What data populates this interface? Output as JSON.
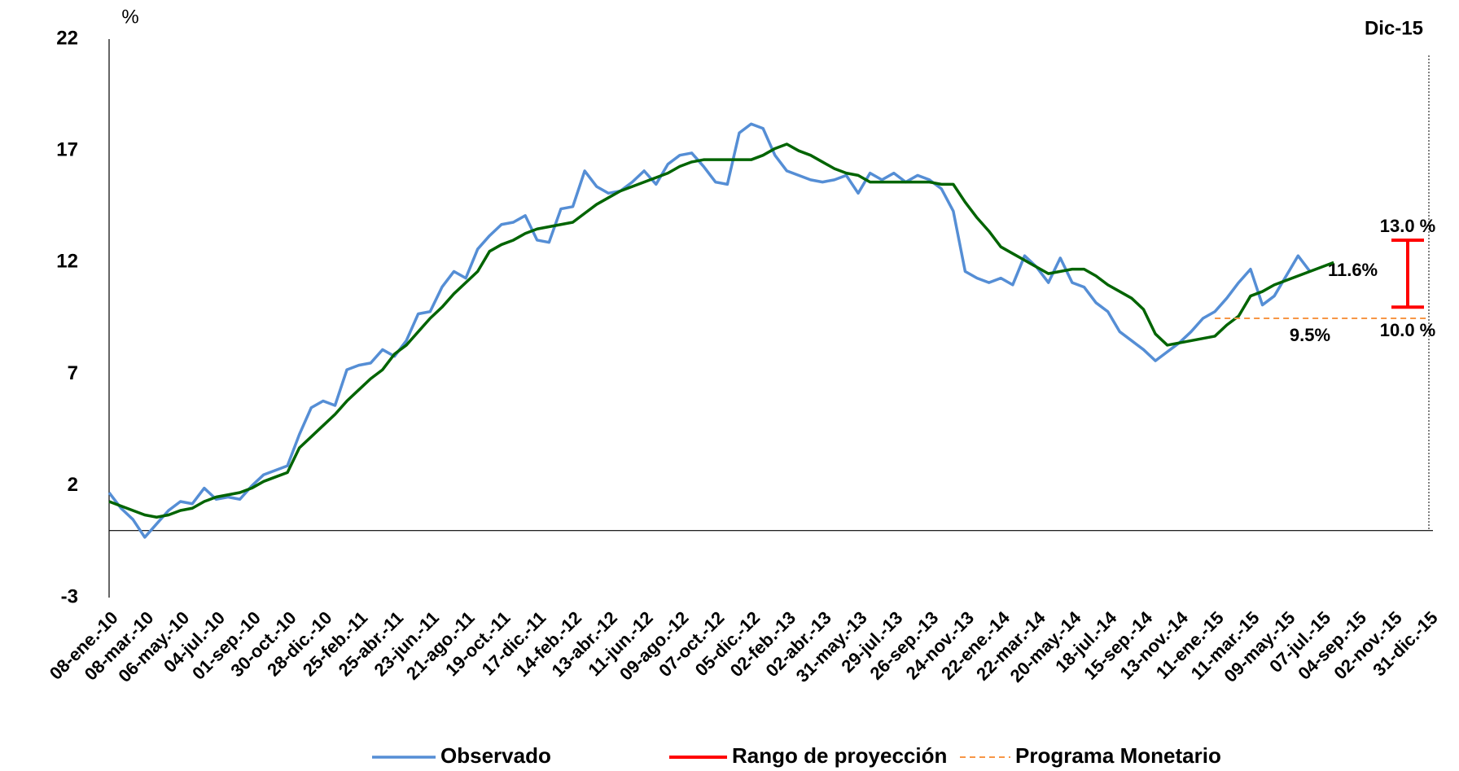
{
  "chart_data": {
    "type": "line",
    "y_label": "%",
    "categories": [
      "08-ene.-10",
      null,
      null,
      "08-mar.-10",
      null,
      null,
      "06-may.-10",
      null,
      null,
      "04-jul.-10",
      null,
      null,
      "01-sep.-10",
      null,
      null,
      "30-oct.-10",
      null,
      null,
      "28-dic.-10",
      null,
      null,
      "25-feb.-11",
      null,
      null,
      "25-abr.-11",
      null,
      null,
      "23-jun.-11",
      null,
      null,
      "21-ago.-11",
      null,
      null,
      "19-oct.-11",
      null,
      null,
      "17-dic.-11",
      null,
      null,
      "14-feb.-12",
      null,
      null,
      "13-abr.-12",
      null,
      null,
      "11-jun.-12",
      null,
      null,
      "09-ago.-12",
      null,
      null,
      "07-oct.-12",
      null,
      null,
      "05-dic.-12",
      null,
      null,
      "02-feb.-13",
      null,
      null,
      "02-abr.-13",
      null,
      null,
      "31-may.-13",
      null,
      null,
      "29-jul.-13",
      null,
      null,
      "26-sep.-13",
      null,
      null,
      "24-nov.-13",
      null,
      null,
      "22-ene.-14",
      null,
      null,
      "22-mar.-14",
      null,
      null,
      "20-may.-14",
      null,
      null,
      "18-jul.-14",
      null,
      null,
      "15-sep.-14",
      null,
      null,
      "13-nov.-14",
      null,
      null,
      "11-ene.-15",
      null,
      null,
      "11-mar.-15",
      null,
      null,
      "09-may.-15",
      null,
      null,
      "07-jul.-15",
      null,
      null,
      "04-sep.-15",
      null,
      null,
      "02-nov.-15",
      null,
      null,
      "31-dic.-15"
    ],
    "series": [
      {
        "name": "Observado",
        "color": "#558ed5",
        "values": [
          1.7,
          1.0,
          0.5,
          -0.3,
          0.3,
          0.9,
          1.3,
          1.2,
          1.9,
          1.4,
          1.5,
          1.4,
          2.0,
          2.5,
          2.7,
          2.9,
          4.3,
          5.5,
          5.8,
          5.6,
          7.2,
          7.4,
          7.5,
          8.1,
          7.8,
          8.5,
          9.7,
          9.8,
          10.9,
          11.6,
          11.3,
          12.6,
          13.2,
          13.7,
          13.8,
          14.1,
          13.0,
          12.9,
          14.4,
          14.5,
          16.1,
          15.4,
          15.1,
          15.2,
          15.6,
          16.1,
          15.5,
          16.4,
          16.8,
          16.9,
          16.3,
          15.6,
          15.5,
          17.8,
          18.2,
          18.0,
          16.8,
          16.1,
          15.9,
          15.7,
          15.6,
          15.7,
          15.9,
          15.1,
          16.0,
          15.7,
          16.0,
          15.6,
          15.9,
          15.7,
          15.3,
          14.3,
          11.6,
          11.3,
          11.1,
          11.3,
          11.0,
          12.3,
          11.8,
          11.1,
          12.2,
          11.1,
          10.9,
          10.2,
          9.8,
          8.9,
          8.5,
          8.1,
          7.6,
          8.0,
          8.4,
          8.9,
          9.5,
          9.8,
          10.4,
          11.1,
          11.7,
          10.1,
          10.5,
          11.4,
          12.3,
          11.6,
          null,
          null,
          null,
          null,
          null,
          null,
          null,
          null,
          null,
          null
        ],
        "value_labels": [
          null,
          null,
          null,
          null,
          null,
          null,
          null,
          null,
          null,
          null,
          null,
          null,
          null,
          null,
          null,
          null,
          null,
          null,
          null,
          null,
          null,
          null,
          null,
          null,
          null,
          null,
          null,
          null,
          null,
          null,
          null,
          null,
          null,
          null,
          null,
          null,
          null,
          null,
          null,
          null,
          null,
          null,
          null,
          null,
          null,
          null,
          null,
          null,
          null,
          null,
          null,
          null,
          null,
          null,
          null,
          null,
          null,
          null,
          null,
          null,
          null,
          null,
          null,
          null,
          null,
          null,
          null,
          null,
          null,
          null,
          null,
          null,
          null,
          null,
          null,
          null,
          null,
          null,
          null,
          null,
          null,
          null,
          null,
          null,
          null,
          null,
          null,
          null,
          null,
          null,
          null,
          null,
          null,
          null,
          null,
          null,
          null,
          null,
          null,
          null,
          null,
          "11.6%",
          null,
          null,
          null,
          null,
          null,
          null,
          null,
          null,
          null,
          null
        ]
      },
      {
        "color": "#006400",
        "values": [
          1.3,
          1.1,
          0.9,
          0.7,
          0.6,
          0.7,
          0.9,
          1.0,
          1.3,
          1.5,
          1.6,
          1.7,
          1.9,
          2.2,
          2.4,
          2.6,
          3.7,
          4.2,
          4.7,
          5.2,
          5.8,
          6.3,
          6.8,
          7.2,
          7.9,
          8.3,
          8.9,
          9.5,
          10.0,
          10.6,
          11.1,
          11.6,
          12.5,
          12.8,
          13.0,
          13.3,
          13.5,
          13.6,
          13.7,
          13.8,
          14.2,
          14.6,
          14.9,
          15.2,
          15.4,
          15.6,
          15.8,
          16.0,
          16.3,
          16.5,
          16.6,
          16.6,
          16.6,
          16.6,
          16.6,
          16.8,
          17.1,
          17.3,
          17.0,
          16.8,
          16.5,
          16.2,
          16.0,
          15.9,
          15.6,
          15.6,
          15.6,
          15.6,
          15.6,
          15.6,
          15.5,
          15.5,
          14.7,
          14.0,
          13.4,
          12.7,
          12.4,
          12.1,
          11.8,
          11.5,
          11.6,
          11.7,
          11.7,
          11.4,
          11.0,
          10.7,
          10.4,
          9.9,
          8.8,
          8.3,
          8.4,
          8.5,
          8.6,
          8.7,
          9.2,
          9.6,
          10.5,
          10.7,
          11.0,
          11.2,
          11.4,
          11.6,
          11.8,
          12.0,
          null,
          null,
          null,
          null,
          null,
          null,
          null,
          null
        ]
      },
      {
        "name": "Programa Monetario",
        "color": "#f79646",
        "dashed": true,
        "values": [
          null,
          null,
          null,
          null,
          null,
          null,
          null,
          null,
          null,
          null,
          null,
          null,
          null,
          null,
          null,
          null,
          null,
          null,
          null,
          null,
          null,
          null,
          null,
          null,
          null,
          null,
          null,
          null,
          null,
          null,
          null,
          null,
          null,
          null,
          null,
          null,
          null,
          null,
          null,
          null,
          null,
          null,
          null,
          null,
          null,
          null,
          null,
          null,
          null,
          null,
          null,
          null,
          null,
          null,
          null,
          null,
          null,
          null,
          null,
          null,
          null,
          null,
          null,
          null,
          null,
          null,
          null,
          null,
          null,
          null,
          null,
          null,
          null,
          null,
          null,
          null,
          null,
          null,
          null,
          null,
          null,
          null,
          null,
          null,
          null,
          null,
          null,
          null,
          null,
          null,
          null,
          null,
          null,
          9.5,
          9.5,
          9.5,
          9.5,
          9.5,
          9.5,
          9.5,
          9.5,
          9.5,
          9.5,
          9.5,
          9.5,
          9.5,
          9.5,
          9.5,
          9.5,
          9.5,
          9.5,
          9.5
        ],
        "value_labels": [
          null,
          null,
          null,
          null,
          null,
          null,
          null,
          null,
          null,
          null,
          null,
          null,
          null,
          null,
          null,
          null,
          null,
          null,
          null,
          null,
          null,
          null,
          null,
          null,
          null,
          null,
          null,
          null,
          null,
          null,
          null,
          null,
          null,
          null,
          null,
          null,
          null,
          null,
          null,
          null,
          null,
          null,
          null,
          null,
          null,
          null,
          null,
          null,
          null,
          null,
          null,
          null,
          null,
          null,
          null,
          null,
          null,
          null,
          null,
          null,
          null,
          null,
          null,
          null,
          null,
          null,
          null,
          null,
          null,
          null,
          null,
          null,
          null,
          null,
          null,
          null,
          null,
          null,
          null,
          null,
          null,
          null,
          null,
          null,
          null,
          null,
          null,
          null,
          null,
          null,
          null,
          null,
          null,
          null,
          null,
          null,
          null,
          null,
          null,
          null,
          null,
          "9.5%",
          null,
          null,
          null,
          null,
          null,
          null,
          null,
          null,
          null,
          null
        ]
      }
    ],
    "range": {
      "name": "Rango de proyección",
      "color": "#ff0000",
      "label": "Dic-15",
      "values": [
        10.0,
        13.0
      ],
      "value_labels": [
        "10.0 %",
        "13.0 %"
      ]
    },
    "ylim": [
      -3,
      22
    ],
    "yticks": [
      -3,
      2,
      7,
      12,
      17,
      22
    ]
  }
}
